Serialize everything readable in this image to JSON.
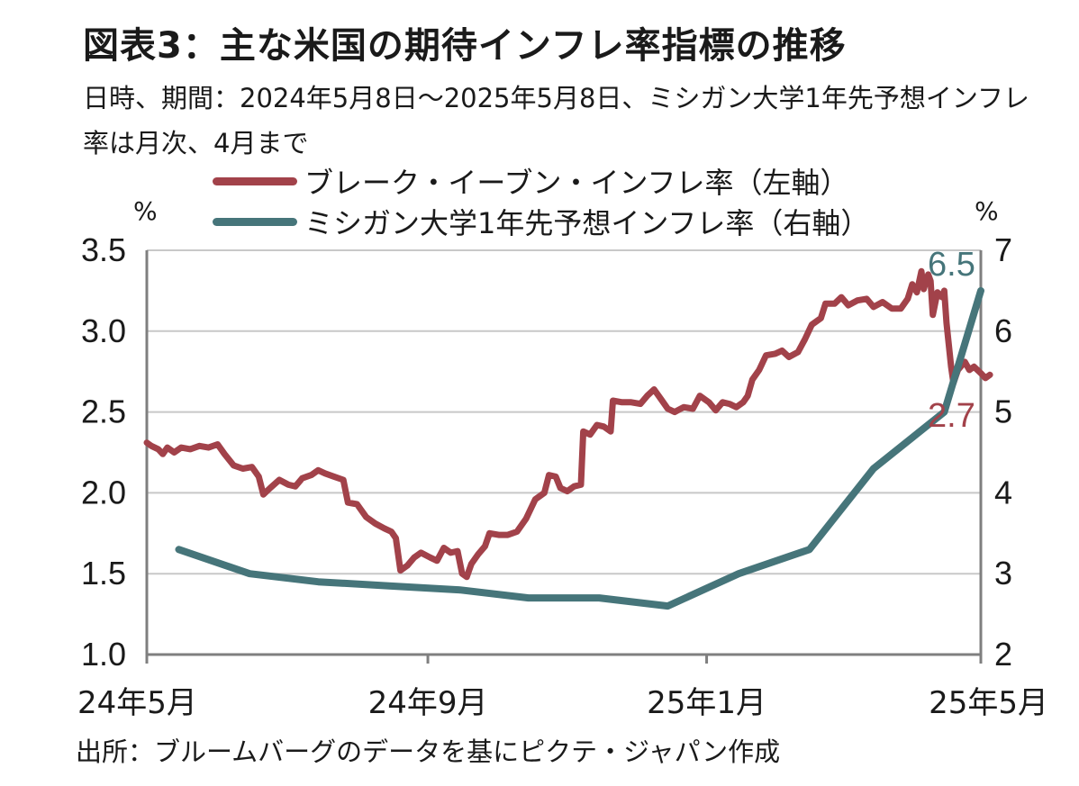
{
  "title": "図表3：主な米国の期待インフレ率指標の推移",
  "subtitle": "日時、期間：2024年5月8日～2025年5月8日、ミシガン大学1年先予想インフレ率は月次、4月まで",
  "source": "出所：ブルームバーグのデータを基にピクテ・ジャパン作成",
  "colors": {
    "breakeven": "#a2424a",
    "michigan": "#46757a",
    "grid": "#c8c8c8",
    "axis": "#7f7f7f"
  },
  "chart_data": {
    "type": "line",
    "legend_position": "top",
    "grid": true,
    "x_ticks": [
      "24年5月",
      "24年9月",
      "25年1月",
      "25年5月"
    ],
    "x_tick_dates": [
      "2024-05-01",
      "2024-09-01",
      "2025-01-01",
      "2025-05-01"
    ],
    "xlim": [
      "2024-05-01",
      "2025-05-01"
    ],
    "y_left": {
      "unit": "%",
      "lim": [
        1.0,
        3.5
      ],
      "ticks": [
        "1.0",
        "1.5",
        "2.0",
        "2.5",
        "3.0",
        "3.5"
      ]
    },
    "y_right": {
      "unit": "%",
      "lim": [
        2,
        7
      ],
      "ticks": [
        "2",
        "3",
        "4",
        "5",
        "6",
        "7"
      ]
    },
    "series": [
      {
        "name": "ブレーク・イーブン・インフレ率（左軸）",
        "axis": "left",
        "color": "#a2424a",
        "end_label": "2.7",
        "points": [
          [
            "2024-05-01",
            2.31
          ],
          [
            "2024-05-03",
            2.29
          ],
          [
            "2024-05-06",
            2.27
          ],
          [
            "2024-05-08",
            2.24
          ],
          [
            "2024-05-10",
            2.28
          ],
          [
            "2024-05-13",
            2.25
          ],
          [
            "2024-05-16",
            2.28
          ],
          [
            "2024-05-20",
            2.27
          ],
          [
            "2024-05-24",
            2.29
          ],
          [
            "2024-05-28",
            2.28
          ],
          [
            "2024-06-01",
            2.3
          ],
          [
            "2024-06-04",
            2.24
          ],
          [
            "2024-06-08",
            2.17
          ],
          [
            "2024-06-12",
            2.15
          ],
          [
            "2024-06-16",
            2.16
          ],
          [
            "2024-06-19",
            2.1
          ],
          [
            "2024-06-21",
            1.99
          ],
          [
            "2024-06-24",
            2.03
          ],
          [
            "2024-06-28",
            2.08
          ],
          [
            "2024-07-02",
            2.05
          ],
          [
            "2024-07-05",
            2.04
          ],
          [
            "2024-07-08",
            2.09
          ],
          [
            "2024-07-12",
            2.11
          ],
          [
            "2024-07-15",
            2.14
          ],
          [
            "2024-07-18",
            2.12
          ],
          [
            "2024-07-22",
            2.1
          ],
          [
            "2024-07-26",
            2.08
          ],
          [
            "2024-07-28",
            1.94
          ],
          [
            "2024-08-01",
            1.93
          ],
          [
            "2024-08-05",
            1.85
          ],
          [
            "2024-08-09",
            1.81
          ],
          [
            "2024-08-13",
            1.78
          ],
          [
            "2024-08-16",
            1.76
          ],
          [
            "2024-08-18",
            1.72
          ],
          [
            "2024-08-20",
            1.52
          ],
          [
            "2024-08-23",
            1.55
          ],
          [
            "2024-08-26",
            1.6
          ],
          [
            "2024-08-29",
            1.63
          ],
          [
            "2024-09-02",
            1.6
          ],
          [
            "2024-09-05",
            1.58
          ],
          [
            "2024-09-08",
            1.66
          ],
          [
            "2024-09-11",
            1.63
          ],
          [
            "2024-09-14",
            1.64
          ],
          [
            "2024-09-16",
            1.5
          ],
          [
            "2024-09-18",
            1.48
          ],
          [
            "2024-09-20",
            1.56
          ],
          [
            "2024-09-23",
            1.62
          ],
          [
            "2024-09-26",
            1.67
          ],
          [
            "2024-09-28",
            1.75
          ],
          [
            "2024-10-02",
            1.74
          ],
          [
            "2024-10-06",
            1.74
          ],
          [
            "2024-10-10",
            1.76
          ],
          [
            "2024-10-14",
            1.84
          ],
          [
            "2024-10-18",
            1.96
          ],
          [
            "2024-10-22",
            2.0
          ],
          [
            "2024-10-24",
            2.11
          ],
          [
            "2024-10-27",
            2.1
          ],
          [
            "2024-10-29",
            2.03
          ],
          [
            "2024-11-01",
            2.01
          ],
          [
            "2024-11-04",
            2.04
          ],
          [
            "2024-11-07",
            2.05
          ],
          [
            "2024-11-08",
            2.38
          ],
          [
            "2024-11-11",
            2.36
          ],
          [
            "2024-11-14",
            2.42
          ],
          [
            "2024-11-17",
            2.41
          ],
          [
            "2024-11-20",
            2.38
          ],
          [
            "2024-11-21",
            2.57
          ],
          [
            "2024-11-25",
            2.56
          ],
          [
            "2024-11-29",
            2.56
          ],
          [
            "2024-12-03",
            2.55
          ],
          [
            "2024-12-06",
            2.6
          ],
          [
            "2024-12-09",
            2.64
          ],
          [
            "2024-12-12",
            2.58
          ],
          [
            "2024-12-15",
            2.52
          ],
          [
            "2024-12-18",
            2.5
          ],
          [
            "2024-12-22",
            2.53
          ],
          [
            "2024-12-26",
            2.52
          ],
          [
            "2024-12-29",
            2.6
          ],
          [
            "2025-01-02",
            2.56
          ],
          [
            "2025-01-05",
            2.51
          ],
          [
            "2025-01-08",
            2.56
          ],
          [
            "2025-01-11",
            2.55
          ],
          [
            "2025-01-14",
            2.53
          ],
          [
            "2025-01-17",
            2.56
          ],
          [
            "2025-01-19",
            2.6
          ],
          [
            "2025-01-21",
            2.7
          ],
          [
            "2025-01-24",
            2.76
          ],
          [
            "2025-01-27",
            2.85
          ],
          [
            "2025-01-31",
            2.86
          ],
          [
            "2025-02-03",
            2.88
          ],
          [
            "2025-02-06",
            2.84
          ],
          [
            "2025-02-10",
            2.87
          ],
          [
            "2025-02-13",
            2.95
          ],
          [
            "2025-02-16",
            3.04
          ],
          [
            "2025-02-20",
            3.08
          ],
          [
            "2025-02-22",
            3.17
          ],
          [
            "2025-02-26",
            3.17
          ],
          [
            "2025-03-01",
            3.21
          ],
          [
            "2025-03-04",
            3.16
          ],
          [
            "2025-03-08",
            3.19
          ],
          [
            "2025-03-12",
            3.2
          ],
          [
            "2025-03-15",
            3.15
          ],
          [
            "2025-03-19",
            3.18
          ],
          [
            "2025-03-23",
            3.14
          ],
          [
            "2025-03-27",
            3.14
          ],
          [
            "2025-03-30",
            3.2
          ],
          [
            "2025-04-01",
            3.29
          ],
          [
            "2025-04-03",
            3.24
          ],
          [
            "2025-04-05",
            3.37
          ],
          [
            "2025-04-06",
            3.26
          ],
          [
            "2025-04-08",
            3.35
          ],
          [
            "2025-04-09",
            3.31
          ],
          [
            "2025-04-10",
            3.1
          ],
          [
            "2025-04-12",
            3.24
          ],
          [
            "2025-04-14",
            3.21
          ],
          [
            "2025-04-15",
            3.25
          ],
          [
            "2025-04-16",
            3.05
          ],
          [
            "2025-04-18",
            2.78
          ],
          [
            "2025-04-19",
            2.68
          ],
          [
            "2025-04-21",
            2.76
          ],
          [
            "2025-04-24",
            2.81
          ],
          [
            "2025-04-26",
            2.76
          ],
          [
            "2025-04-28",
            2.78
          ],
          [
            "2025-05-01",
            2.74
          ],
          [
            "2025-05-03",
            2.71
          ],
          [
            "2025-05-05",
            2.73
          ]
        ]
      },
      {
        "name": "ミシガン大学1年先予想インフレ率（右軸）",
        "axis": "right",
        "color": "#46757a",
        "end_label": "6.5",
        "points": [
          [
            "2024-05-15",
            3.3
          ],
          [
            "2024-06-15",
            3.0
          ],
          [
            "2024-07-15",
            2.9
          ],
          [
            "2024-08-15",
            2.85
          ],
          [
            "2024-09-15",
            2.8
          ],
          [
            "2024-10-15",
            2.7
          ],
          [
            "2024-11-15",
            2.7
          ],
          [
            "2024-12-15",
            2.6
          ],
          [
            "2025-01-15",
            3.0
          ],
          [
            "2025-02-15",
            3.3
          ],
          [
            "2025-03-15",
            4.3
          ],
          [
            "2025-04-15",
            5.0
          ],
          [
            "2025-05-01",
            6.5
          ]
        ]
      }
    ]
  }
}
